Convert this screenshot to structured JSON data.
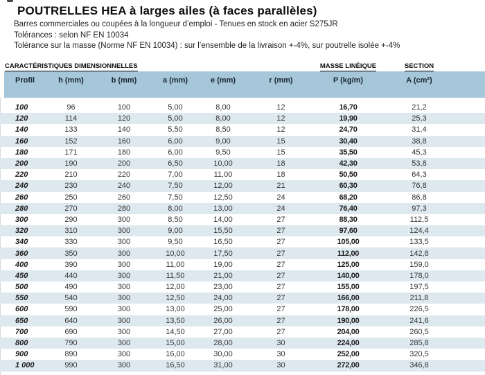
{
  "page": {
    "title": "POUTRELLES HEA à larges ailes (à faces parallèles)",
    "subtitle_lines": [
      "Barres commerciales ou coupées à la longueur d’emploi - Tenues en stock en acier S275JR",
      "Tolérances : selon NF EN 10034",
      "Tolérance sur la masse (Norme NF EN 10034) : sur l’ensemble de la livraison +-4%, sur poutrelle isolée +-4%"
    ]
  },
  "table": {
    "section_headers": {
      "dimensional": "CARACTÉRISTIQUES DIMENSIONNELLES",
      "mass": "MASSE LINÉIQUE",
      "section": "SECTION"
    },
    "columns": [
      "Profil",
      "h (mm)",
      "b (mm)",
      "a (mm)",
      "e (mm)",
      "r (mm)",
      "P (kg/m)",
      "A (cm²)"
    ],
    "column_keys": [
      "profil",
      "h-mm",
      "b-mm",
      "a-mm",
      "e-mm",
      "r-mm",
      "p-kg-m",
      "a-cm2"
    ],
    "rows": [
      [
        "100",
        "96",
        "100",
        "5,00",
        "8,00",
        "12",
        "16,70",
        "21,2"
      ],
      [
        "120",
        "114",
        "120",
        "5,00",
        "8,00",
        "12",
        "19,90",
        "25,3"
      ],
      [
        "140",
        "133",
        "140",
        "5,50",
        "8,50",
        "12",
        "24,70",
        "31,4"
      ],
      [
        "160",
        "152",
        "160",
        "6,00",
        "9,00",
        "15",
        "30,40",
        "38,8"
      ],
      [
        "180",
        "171",
        "180",
        "6,00",
        "9,50",
        "15",
        "35,50",
        "45,3"
      ],
      [
        "200",
        "190",
        "200",
        "6,50",
        "10,00",
        "18",
        "42,30",
        "53,8"
      ],
      [
        "220",
        "210",
        "220",
        "7,00",
        "11,00",
        "18",
        "50,50",
        "64,3"
      ],
      [
        "240",
        "230",
        "240",
        "7,50",
        "12,00",
        "21",
        "60,30",
        "76,8"
      ],
      [
        "260",
        "250",
        "260",
        "7,50",
        "12,50",
        "24",
        "68,20",
        "86,8"
      ],
      [
        "280",
        "270",
        "280",
        "8,00",
        "13,00",
        "24",
        "76,40",
        "97,3"
      ],
      [
        "300",
        "290",
        "300",
        "8,50",
        "14,00",
        "27",
        "88,30",
        "112,5"
      ],
      [
        "320",
        "310",
        "300",
        "9,00",
        "15,50",
        "27",
        "97,60",
        "124,4"
      ],
      [
        "340",
        "330",
        "300",
        "9,50",
        "16,50",
        "27",
        "105,00",
        "133,5"
      ],
      [
        "360",
        "350",
        "300",
        "10,00",
        "17,50",
        "27",
        "112,00",
        "142,8"
      ],
      [
        "400",
        "390",
        "300",
        "11,00",
        "19,00",
        "27",
        "125,00",
        "159,0"
      ],
      [
        "450",
        "440",
        "300",
        "11,50",
        "21,00",
        "27",
        "140,00",
        "178,0"
      ],
      [
        "500",
        "490",
        "300",
        "12,00",
        "23,00",
        "27",
        "155,00",
        "197,5"
      ],
      [
        "550",
        "540",
        "300",
        "12,50",
        "24,00",
        "27",
        "166,00",
        "211,8"
      ],
      [
        "600",
        "590",
        "300",
        "13,00",
        "25,00",
        "27",
        "178,00",
        "226,5"
      ],
      [
        "650",
        "640",
        "300",
        "13,50",
        "26,00",
        "27",
        "190,00",
        "241,6"
      ],
      [
        "700",
        "690",
        "300",
        "14,50",
        "27,00",
        "27",
        "204,00",
        "260,5"
      ],
      [
        "800",
        "790",
        "300",
        "15,00",
        "28,00",
        "30",
        "224,00",
        "285,8"
      ],
      [
        "900",
        "890",
        "300",
        "16,00",
        "30,00",
        "30",
        "252,00",
        "320,5"
      ],
      [
        "1 000",
        "990",
        "300",
        "16,50",
        "31,00",
        "30",
        "272,00",
        "346,8"
      ]
    ]
  },
  "colors": {
    "header_band": "#a6c6d9",
    "row_alt": "#dde9ef",
    "section_underline": "#000000"
  }
}
